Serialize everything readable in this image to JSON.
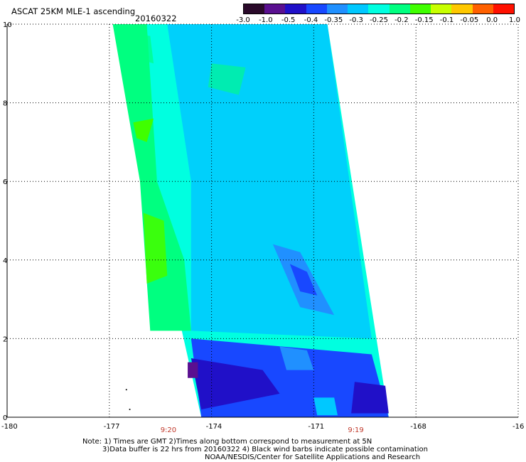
{
  "header": {
    "title": "ASCAT 25KM MLE-1 ascending",
    "date": "20160322"
  },
  "colorbar": {
    "labels": [
      "-3.0",
      "-1.0",
      "-0.5",
      "-0.4",
      "-0.35",
      "-0.3",
      "-0.25",
      "-0.2",
      "-0.15",
      "-0.1",
      "-0.05",
      "0.0",
      "1.0"
    ],
    "colors": [
      "#2a0a2a",
      "#5a1090",
      "#2010c8",
      "#1848ff",
      "#2090ff",
      "#00c8ff",
      "#00ffe0",
      "#00ff80",
      "#40ff00",
      "#c8ff00",
      "#ffc800",
      "#ff6000",
      "#ff1000"
    ]
  },
  "axes": {
    "x_ticks": [
      "-180",
      "-177",
      "-174",
      "-171",
      "-168",
      "-16"
    ],
    "y_ticks": [
      "0",
      "2",
      "4",
      "6",
      "8",
      "10"
    ],
    "x_range": [
      -180,
      -165
    ],
    "y_range": [
      0,
      10
    ],
    "grid": true,
    "grid_style": "dotted"
  },
  "times": [
    "9:20",
    "9:19"
  ],
  "swath": {
    "corner_labels": "lon/lat",
    "polygon": [
      [
        -176.9,
        10.0
      ],
      [
        -174.3,
        0.0
      ],
      [
        -170.3,
        0.0
      ],
      [
        -168.8,
        0.0
      ],
      [
        -170.6,
        10.0
      ]
    ],
    "regions": [
      {
        "level": "-0.25",
        "color": "#00ffe0"
      },
      {
        "level": "-0.2",
        "color": "#00ff80"
      },
      {
        "level": "-0.15",
        "color": "#40ff00"
      },
      {
        "level": "-0.3",
        "color": "#00c8ff"
      },
      {
        "level": "-0.35",
        "color": "#2090ff"
      },
      {
        "level": "-0.4",
        "color": "#1848ff"
      },
      {
        "level": "-0.5",
        "color": "#2010c8"
      },
      {
        "level": "-1.0",
        "color": "#5a1090"
      }
    ]
  },
  "notes": [
    "Note: 1) Times are GMT 2)Times along bottom correspond to measurement at 5N",
    "3)Data buffer is 22 hrs from 20160322 4) Black wind barbs indicate possible contamination",
    "NOAA/NESDIS/Center for Satellite Applications and Research"
  ]
}
